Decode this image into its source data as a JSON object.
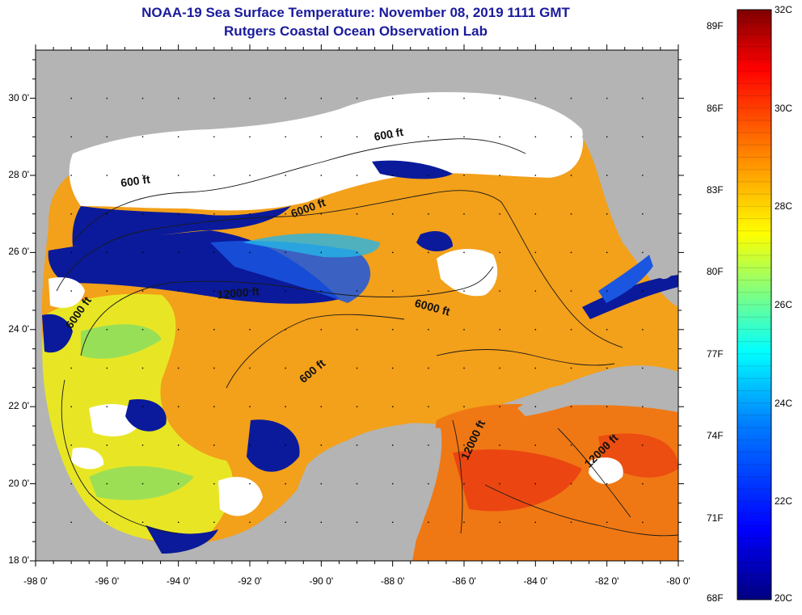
{
  "title": {
    "line1": "NOAA-19 Sea Surface Temperature:  November 08, 2019 1111 GMT",
    "line2": "Rutgers Coastal Ocean Observation Lab"
  },
  "axes": {
    "lat_labels": [
      "30 0'",
      "28 0'",
      "26 0'",
      "24 0'",
      "22 0'",
      "20 0'",
      "18 0'"
    ],
    "lon_labels": [
      "-98 0'",
      "-96 0'",
      "-94 0'",
      "-92 0'",
      "-90 0'",
      "-88 0'",
      "-86 0'",
      "-84 0'",
      "-82 0'",
      "-80 0'"
    ],
    "lat_range": [
      18,
      31
    ],
    "lon_range": [
      -98,
      -80
    ]
  },
  "contour_labels": [
    {
      "text": "600 ft",
      "lon": -88.5,
      "lat": 28.9,
      "rot": -10
    },
    {
      "text": "600 ft",
      "lon": -95.6,
      "lat": 27.7,
      "rot": -8
    },
    {
      "text": "6000 ft",
      "lon": -90.8,
      "lat": 26.9,
      "rot": -20
    },
    {
      "text": "12000 ft",
      "lon": -92.9,
      "lat": 24.8,
      "rot": -5
    },
    {
      "text": "6000 ft",
      "lon": -87.4,
      "lat": 24.6,
      "rot": 15
    },
    {
      "text": "6000 ft",
      "lon": -97.0,
      "lat": 24.0,
      "rot": -55
    },
    {
      "text": "600 ft",
      "lon": -90.5,
      "lat": 22.6,
      "rot": -40
    },
    {
      "text": "12000 ft",
      "lon": -85.9,
      "lat": 20.6,
      "rot": -65
    },
    {
      "text": "12000 ft",
      "lon": -82.5,
      "lat": 20.4,
      "rot": -45
    }
  ],
  "colorbar": {
    "fahrenheit": [
      "89F",
      "86F",
      "83F",
      "80F",
      "77F",
      "74F",
      "71F",
      "68F"
    ],
    "celsius": [
      "32C",
      "30C",
      "28C",
      "26C",
      "24C",
      "22C",
      "20C"
    ],
    "range_c": [
      20,
      32
    ],
    "colors": [
      "#00007f",
      "#0000ff",
      "#0080ff",
      "#00ffff",
      "#80ff80",
      "#ffff00",
      "#ff8000",
      "#ff0000",
      "#7f0000"
    ]
  },
  "colors": {
    "land": "#b4b4b4",
    "cloud": "#ffffff",
    "warm": "#f08a14",
    "cool": "#eeea1e",
    "cold": "#0a1a9a",
    "title": "#1a1a9c"
  }
}
